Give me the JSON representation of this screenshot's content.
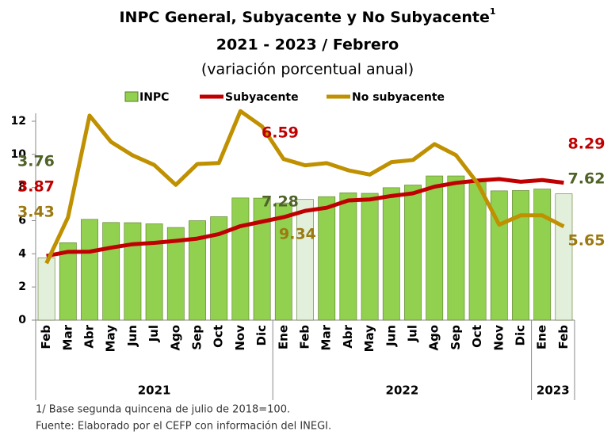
{
  "chart_data": {
    "type": "bar_line",
    "title": "INPC General, Subyacente y No Subyacente",
    "title_superscript": "1",
    "subtitle": "2021 - 2023 / Febrero",
    "subtitle2": "(variación porcentual anual)",
    "categories": [
      "Feb",
      "Mar",
      "Abr",
      "May",
      "Jun",
      "Jul",
      "Ago",
      "Sep",
      "Oct",
      "Nov",
      "Dic",
      "Ene",
      "Feb",
      "Mar",
      "Abr",
      "May",
      "Jun",
      "Jul",
      "Ago",
      "Sep",
      "Oct",
      "Nov",
      "Dic",
      "Ene",
      "Feb"
    ],
    "year_groups": [
      "2021",
      "2022",
      "2023"
    ],
    "series": [
      {
        "name": "INPC",
        "kind": "bar",
        "color": "#92d050",
        "highlight_color": "#e2efda",
        "label_color": "#4f6228",
        "values": [
          3.76,
          4.67,
          6.08,
          5.89,
          5.88,
          5.81,
          5.59,
          6.0,
          6.24,
          7.37,
          7.36,
          7.07,
          7.28,
          7.45,
          7.68,
          7.65,
          7.99,
          8.15,
          8.7,
          8.7,
          8.41,
          7.8,
          7.82,
          7.91,
          7.62
        ]
      },
      {
        "name": "Subyacente",
        "kind": "line",
        "color": "#c00000",
        "label_color": "#c00000",
        "values": [
          3.87,
          4.12,
          4.13,
          4.37,
          4.58,
          4.66,
          4.78,
          4.92,
          5.19,
          5.67,
          5.94,
          6.21,
          6.59,
          6.78,
          7.22,
          7.28,
          7.49,
          7.65,
          8.05,
          8.28,
          8.42,
          8.51,
          8.35,
          8.45,
          8.29
        ]
      },
      {
        "name": "No subyacente",
        "kind": "line",
        "color": "#bf9000",
        "label_color": "#9c7a12",
        "values": [
          3.43,
          6.2,
          12.34,
          10.75,
          9.94,
          9.36,
          8.16,
          9.42,
          9.48,
          12.61,
          11.69,
          9.72,
          9.34,
          9.47,
          9.04,
          8.78,
          9.53,
          9.66,
          10.62,
          9.95,
          8.26,
          5.76,
          6.32,
          6.32,
          5.65
        ]
      }
    ],
    "ylim": [
      0,
      12
    ],
    "yticks": [
      0,
      2,
      4,
      6,
      8,
      10,
      12
    ],
    "notes": [
      "1/ Base segunda quincena de julio de 2018=100.",
      "Fuente: Elaborado por el CEFP con información del INEGI."
    ]
  }
}
